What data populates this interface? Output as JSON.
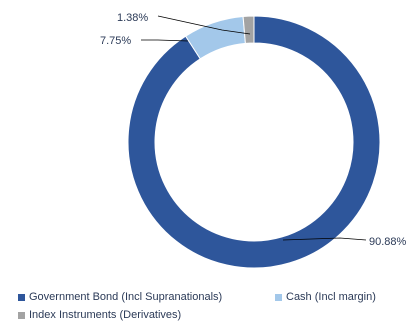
{
  "chart_data": {
    "type": "pie",
    "donut": true,
    "title": "",
    "slices": [
      {
        "name": "Government Bond (Incl Supranationals)",
        "value": 90.88,
        "label": "90.88%",
        "color": "#2e569b"
      },
      {
        "name": "Cash (Incl margin)",
        "value": 7.75,
        "label": "7.75%",
        "color": "#a3c8ea"
      },
      {
        "name": "Index Instruments (Derivatives)",
        "value": 1.38,
        "label": "1.38%",
        "color": "#a3a3a3"
      }
    ],
    "legend": "bottom"
  }
}
